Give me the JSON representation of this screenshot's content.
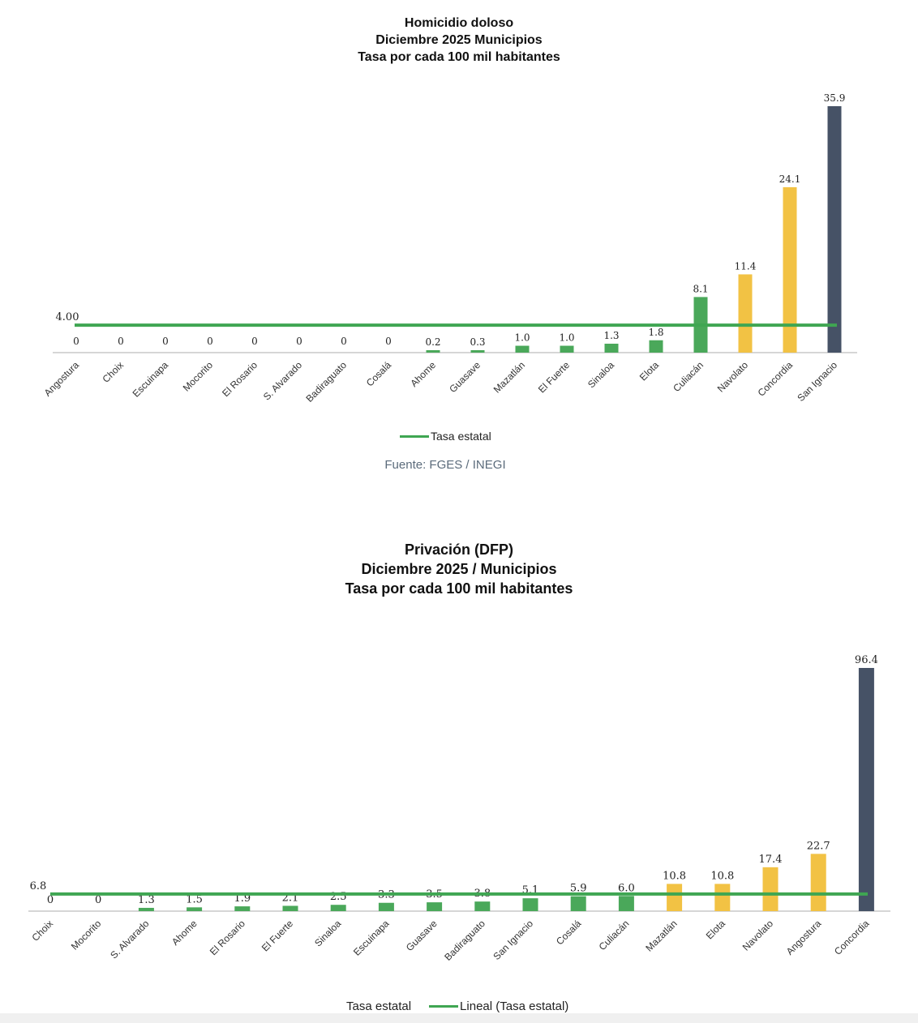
{
  "chart_data": [
    {
      "type": "bar",
      "title": [
        "Homicidio doloso",
        "Diciembre 2025 Municipios",
        "Tasa por cada 100 mil habitantes"
      ],
      "categories": [
        "Angostura",
        "Choix",
        "Escuinapa",
        "Mocorito",
        "El Rosario",
        "S. Alvarado",
        "Badiraguato",
        "Cosalá",
        "Ahome",
        "Guasave",
        "Mazatlán",
        "El Fuerte",
        "Sinaloa",
        "Elota",
        "Culiacán",
        "Navolato",
        "Concordia",
        "San Ignacio"
      ],
      "values": [
        0,
        0,
        0,
        0,
        0,
        0,
        0,
        0,
        0.2,
        0.3,
        1.0,
        1.0,
        1.3,
        1.8,
        8.1,
        11.4,
        24.1,
        35.9
      ],
      "labels": [
        "0",
        "0",
        "0",
        "0",
        "0",
        "0",
        "0",
        "0",
        "0.2",
        "0.3",
        "1.0",
        "1.0",
        "1.3",
        "1.8",
        "8.1",
        "11.4",
        "24.1",
        "35.9"
      ],
      "colors": [
        "#4aa85a",
        "#4aa85a",
        "#4aa85a",
        "#4aa85a",
        "#4aa85a",
        "#4aa85a",
        "#4aa85a",
        "#4aa85a",
        "#4aa85a",
        "#4aa85a",
        "#4aa85a",
        "#4aa85a",
        "#4aa85a",
        "#4aa85a",
        "#4aa85a",
        "#f2c244",
        "#f2c244",
        "#465266"
      ],
      "reference_line": {
        "name": "Tasa estatal",
        "value": 4.0,
        "label": "4.00",
        "color": "#3fa652"
      },
      "legend": [
        "Tasa estatal"
      ],
      "source": "Fuente: FGES / INEGI",
      "ylim": [
        0,
        36
      ]
    },
    {
      "type": "bar",
      "title": [
        "Privación (DFP)",
        "Diciembre 2025 / Municipios",
        "Tasa por cada 100 mil habitantes"
      ],
      "categories": [
        "Choix",
        "Mocorito",
        "S. Alvarado",
        "Ahome",
        "El Rosario",
        "El Fuerte",
        "Sinaloa",
        "Escuinapa",
        "Guasave",
        "Badiraguato",
        "San Ignacio",
        "Cosalá",
        "Culiacán",
        "Mazatlán",
        "Elota",
        "Navolato",
        "Angostura",
        "Concordia"
      ],
      "values": [
        0,
        0,
        1.3,
        1.5,
        1.9,
        2.1,
        2.5,
        3.3,
        3.5,
        3.8,
        5.1,
        5.9,
        6.0,
        10.8,
        10.8,
        17.4,
        22.7,
        96.4
      ],
      "labels": [
        "0",
        "0",
        "1.3",
        "1.5",
        "1.9",
        "2.1",
        "2.5",
        "3.3",
        "3.5",
        "3.8",
        "5.1",
        "5.9",
        "6.0",
        "10.8",
        "10.8",
        "17.4",
        "22.7",
        "96.4"
      ],
      "colors": [
        "#4aa85a",
        "#4aa85a",
        "#4aa85a",
        "#4aa85a",
        "#4aa85a",
        "#4aa85a",
        "#4aa85a",
        "#4aa85a",
        "#4aa85a",
        "#4aa85a",
        "#4aa85a",
        "#4aa85a",
        "#4aa85a",
        "#f2c244",
        "#f2c244",
        "#f2c244",
        "#f2c244",
        "#465266"
      ],
      "reference_line": {
        "name": "Tasa estatal",
        "value": 6.8,
        "label": "6.8",
        "color": "#3fa652"
      },
      "legend": [
        "Tasa estatal",
        "Lineal (Tasa estatal)"
      ],
      "ylim": [
        0,
        97
      ]
    }
  ]
}
